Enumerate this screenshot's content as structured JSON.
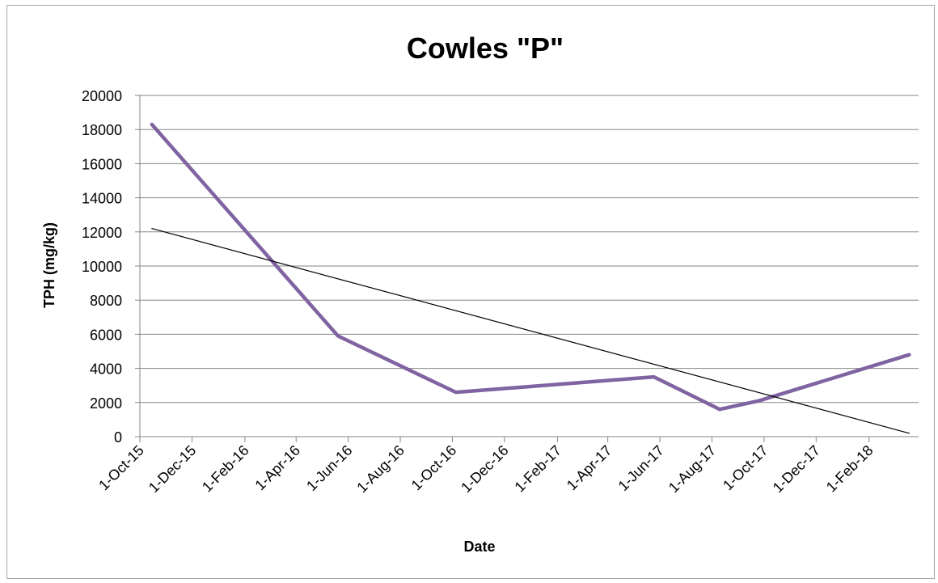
{
  "chart_data": {
    "type": "line",
    "title": "Cowles \"P\"",
    "xlabel": "Date",
    "ylabel": "TPH (mg/kg)",
    "ylim": [
      0,
      20000
    ],
    "yticks": [
      "0",
      "2000",
      "4000",
      "6000",
      "8000",
      "10000",
      "12000",
      "14000",
      "16000",
      "18000",
      "20000"
    ],
    "xticks": [
      "1-Oct-15",
      "1-Dec-15",
      "1-Feb-16",
      "1-Apr-16",
      "1-Jun-16",
      "1-Aug-16",
      "1-Oct-16",
      "1-Dec-16",
      "1-Feb-17",
      "1-Apr-17",
      "1-Jun-17",
      "1-Aug-17",
      "1-Oct-17",
      "1-Dec-17",
      "1-Feb-18"
    ],
    "xlim": [
      "2015-10-01",
      "2018-03-31"
    ],
    "grid": true,
    "series": [
      {
        "color": "#8064a2",
        "x": [
          "2015-10-15",
          "2016-05-20",
          "2016-10-05",
          "2017-05-25",
          "2017-08-10",
          "2017-09-25",
          "2018-03-20"
        ],
        "values": [
          18300,
          5900,
          2600,
          3500,
          1600,
          2100,
          4800
        ]
      },
      {
        "kind": "linear-trendline",
        "color": "#000000",
        "x": [
          "2015-10-15",
          "2018-03-20"
        ],
        "values": [
          12200,
          200
        ]
      }
    ]
  }
}
